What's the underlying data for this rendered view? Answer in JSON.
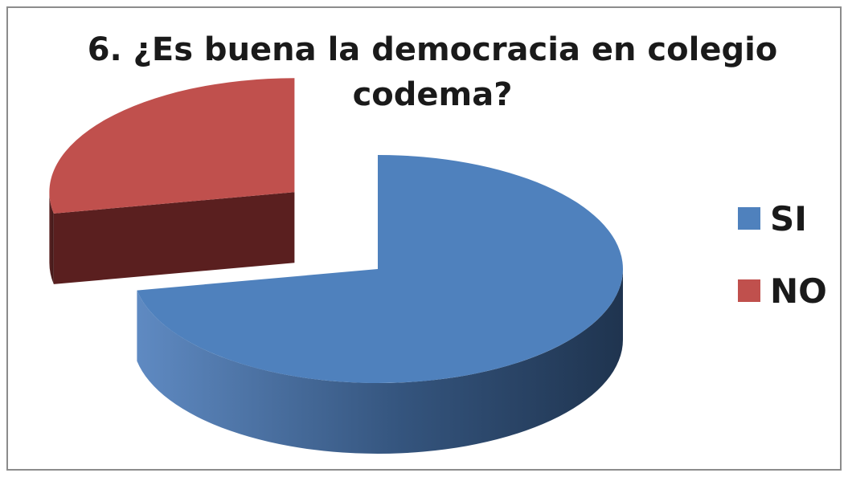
{
  "chart_data": {
    "type": "pie",
    "title": "6. ¿Es buena la democracia en colegio codema?",
    "title_lines": [
      "6. ¿Es buena la democracia en colegio",
      "codema?"
    ],
    "three_d": true,
    "exploded": true,
    "legend_position": "right",
    "series": [
      {
        "name": "",
        "slices": [
          {
            "label": "SI",
            "value": 72,
            "color": "#4f81bd"
          },
          {
            "label": "NO",
            "value": 28,
            "color": "#c0504d"
          }
        ]
      }
    ]
  }
}
